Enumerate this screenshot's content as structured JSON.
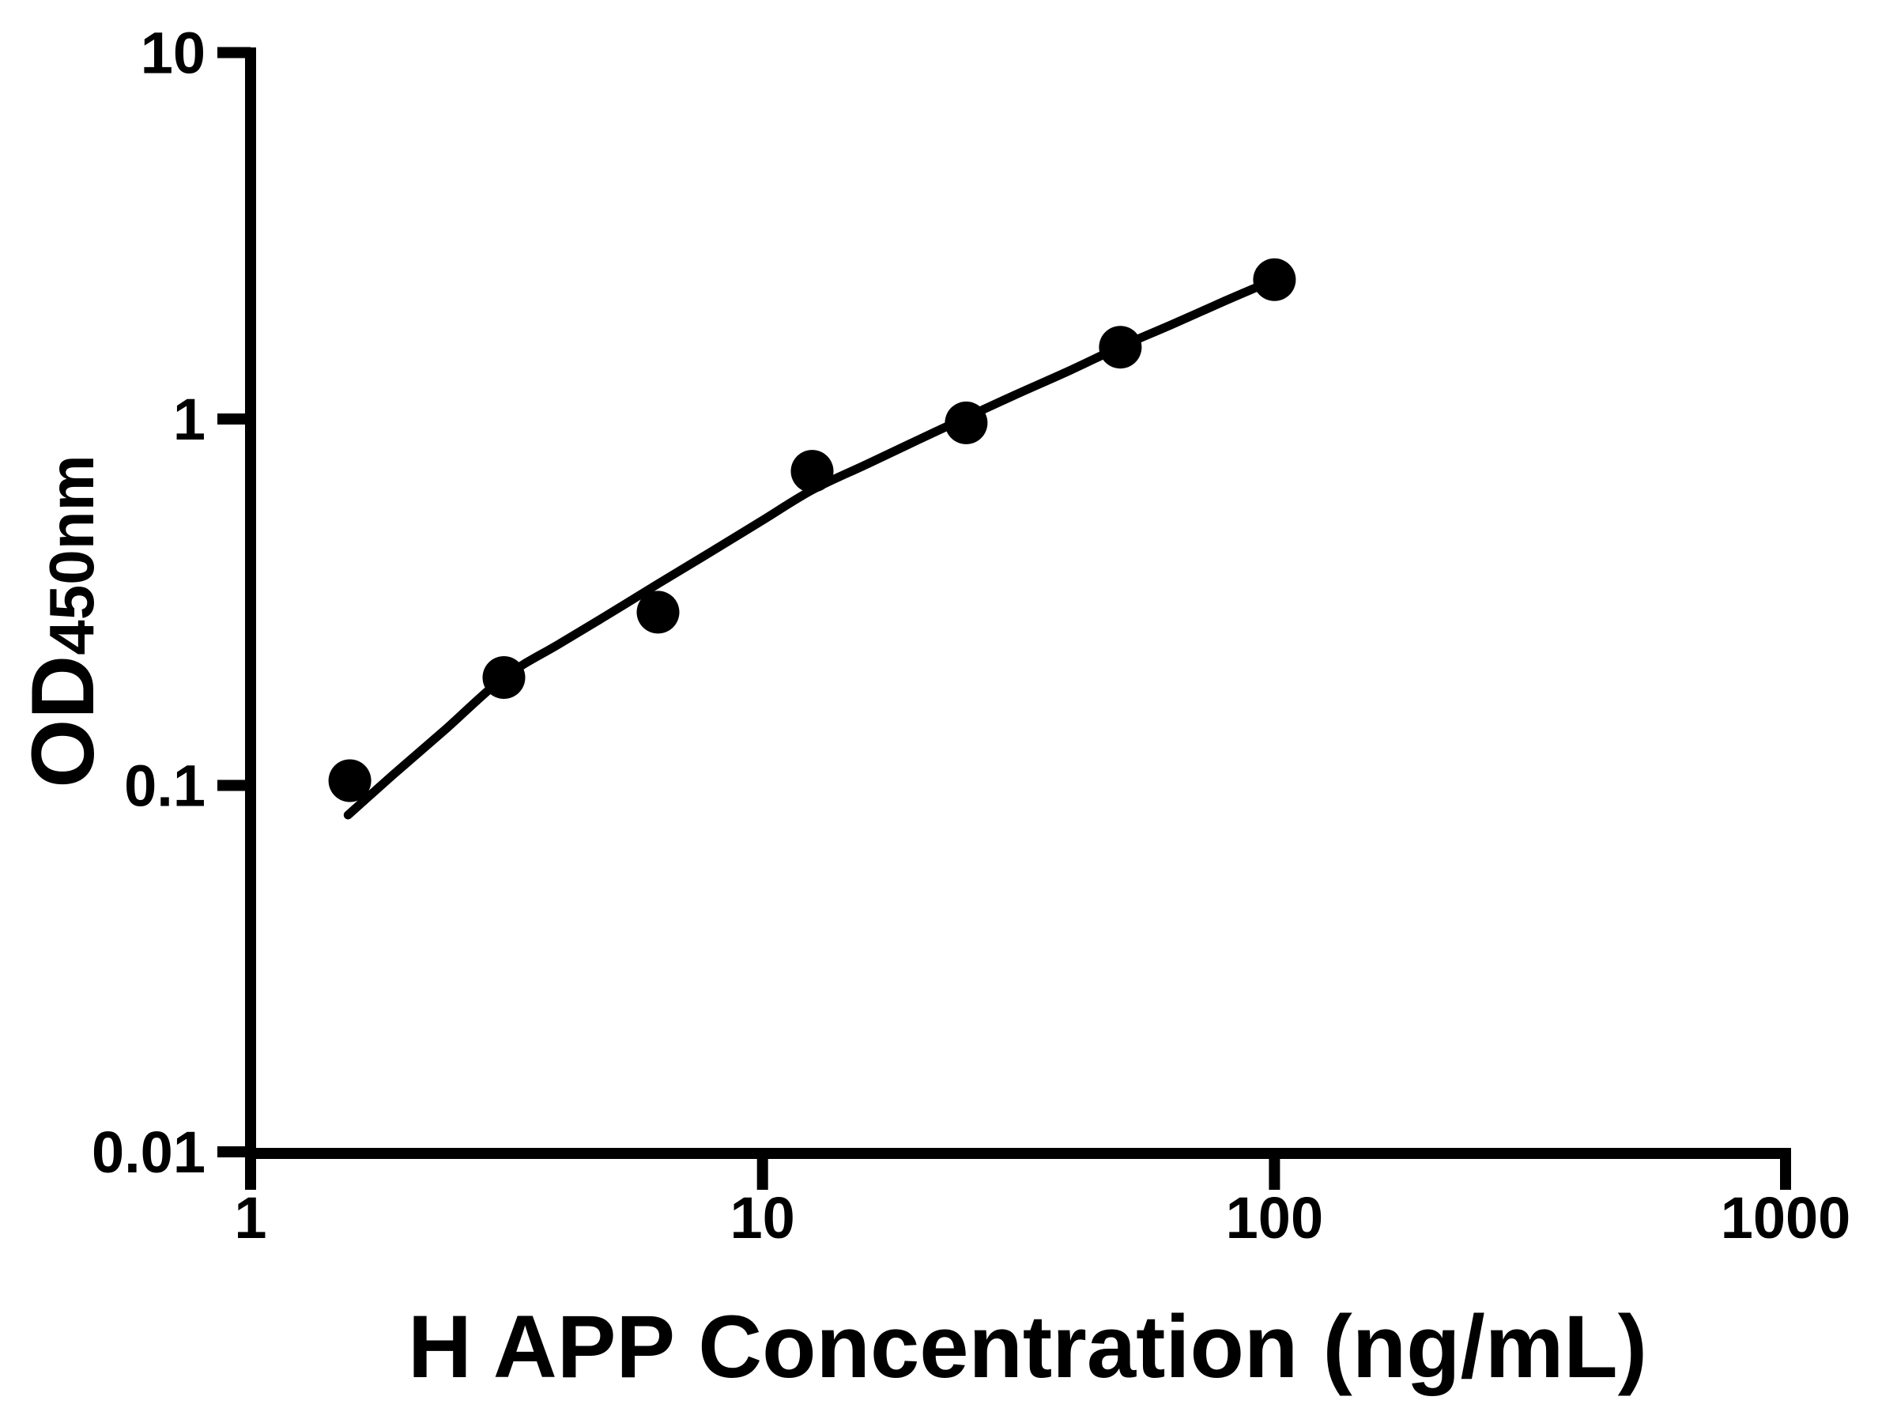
{
  "figure": {
    "background": "#ffffff",
    "foreground": "#000000"
  },
  "chart_data": {
    "type": "scatter",
    "title": "",
    "xlabel": "H APP Concentration (ng/mL)",
    "ylabel_main": "OD",
    "ylabel_sub": "450nm",
    "x_scale": "log",
    "y_scale": "log",
    "xlim": [
      1,
      1000
    ],
    "ylim": [
      0.01,
      10
    ],
    "grid": false,
    "legend": null,
    "x_ticks": [
      {
        "value": 1,
        "label": "1"
      },
      {
        "value": 10,
        "label": "10"
      },
      {
        "value": 100,
        "label": "100"
      },
      {
        "value": 1000,
        "label": "1000"
      }
    ],
    "y_ticks": [
      {
        "value": 10,
        "label": "10"
      },
      {
        "value": 1,
        "label": "1"
      },
      {
        "value": 0.1,
        "label": "0.1"
      },
      {
        "value": 0.01,
        "label": "0.01"
      }
    ],
    "points": [
      {
        "x": 1.563,
        "y": 0.103
      },
      {
        "x": 3.125,
        "y": 0.197
      },
      {
        "x": 6.25,
        "y": 0.297
      },
      {
        "x": 12.5,
        "y": 0.72
      },
      {
        "x": 25,
        "y": 0.976
      },
      {
        "x": 50,
        "y": 1.57
      },
      {
        "x": 100,
        "y": 2.4
      }
    ],
    "fit_curve": [
      {
        "x": 1.55,
        "y": 0.083
      },
      {
        "x": 1.9,
        "y": 0.107
      },
      {
        "x": 2.4,
        "y": 0.142
      },
      {
        "x": 3.125,
        "y": 0.197
      },
      {
        "x": 4.0,
        "y": 0.243
      },
      {
        "x": 5.0,
        "y": 0.293
      },
      {
        "x": 6.25,
        "y": 0.355
      },
      {
        "x": 8.0,
        "y": 0.437
      },
      {
        "x": 10.0,
        "y": 0.529
      },
      {
        "x": 12.5,
        "y": 0.64
      },
      {
        "x": 16.0,
        "y": 0.753
      },
      {
        "x": 20.0,
        "y": 0.873
      },
      {
        "x": 25.0,
        "y": 1.01
      },
      {
        "x": 31.0,
        "y": 1.16
      },
      {
        "x": 40.0,
        "y": 1.36
      },
      {
        "x": 50.0,
        "y": 1.575
      },
      {
        "x": 63.0,
        "y": 1.81
      },
      {
        "x": 80.0,
        "y": 2.1
      },
      {
        "x": 100.0,
        "y": 2.4
      }
    ]
  }
}
